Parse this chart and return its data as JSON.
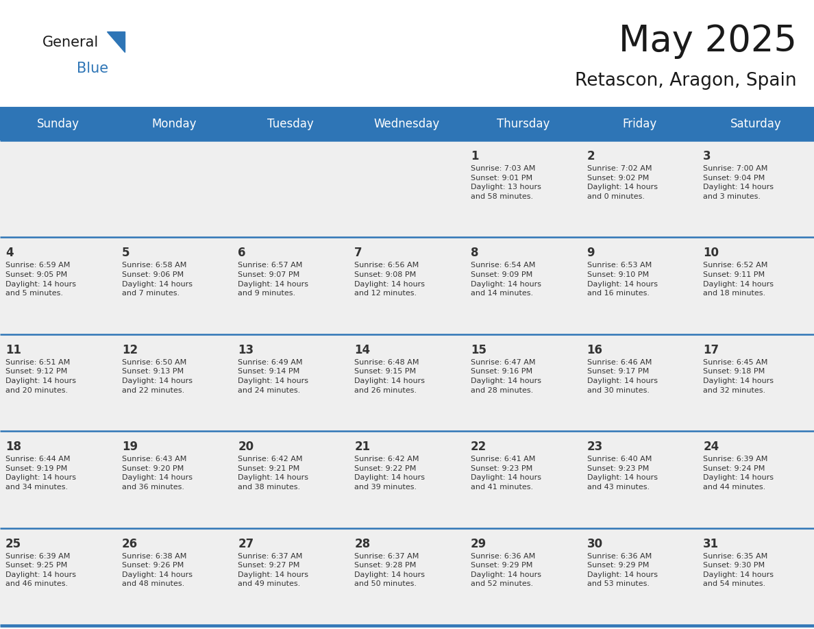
{
  "title": "May 2025",
  "subtitle": "Retascon, Aragon, Spain",
  "header_bg_color": "#2E75B6",
  "header_text_color": "#FFFFFF",
  "cell_bg_color": "#EFEFEF",
  "cell_bg_color_white": "#FFFFFF",
  "text_color": "#333333",
  "border_color": "#2E75B6",
  "days_of_week": [
    "Sunday",
    "Monday",
    "Tuesday",
    "Wednesday",
    "Thursday",
    "Friday",
    "Saturday"
  ],
  "calendar_data": [
    [
      {
        "day": "",
        "info": ""
      },
      {
        "day": "",
        "info": ""
      },
      {
        "day": "",
        "info": ""
      },
      {
        "day": "",
        "info": ""
      },
      {
        "day": "1",
        "info": "Sunrise: 7:03 AM\nSunset: 9:01 PM\nDaylight: 13 hours\nand 58 minutes."
      },
      {
        "day": "2",
        "info": "Sunrise: 7:02 AM\nSunset: 9:02 PM\nDaylight: 14 hours\nand 0 minutes."
      },
      {
        "day": "3",
        "info": "Sunrise: 7:00 AM\nSunset: 9:04 PM\nDaylight: 14 hours\nand 3 minutes."
      }
    ],
    [
      {
        "day": "4",
        "info": "Sunrise: 6:59 AM\nSunset: 9:05 PM\nDaylight: 14 hours\nand 5 minutes."
      },
      {
        "day": "5",
        "info": "Sunrise: 6:58 AM\nSunset: 9:06 PM\nDaylight: 14 hours\nand 7 minutes."
      },
      {
        "day": "6",
        "info": "Sunrise: 6:57 AM\nSunset: 9:07 PM\nDaylight: 14 hours\nand 9 minutes."
      },
      {
        "day": "7",
        "info": "Sunrise: 6:56 AM\nSunset: 9:08 PM\nDaylight: 14 hours\nand 12 minutes."
      },
      {
        "day": "8",
        "info": "Sunrise: 6:54 AM\nSunset: 9:09 PM\nDaylight: 14 hours\nand 14 minutes."
      },
      {
        "day": "9",
        "info": "Sunrise: 6:53 AM\nSunset: 9:10 PM\nDaylight: 14 hours\nand 16 minutes."
      },
      {
        "day": "10",
        "info": "Sunrise: 6:52 AM\nSunset: 9:11 PM\nDaylight: 14 hours\nand 18 minutes."
      }
    ],
    [
      {
        "day": "11",
        "info": "Sunrise: 6:51 AM\nSunset: 9:12 PM\nDaylight: 14 hours\nand 20 minutes."
      },
      {
        "day": "12",
        "info": "Sunrise: 6:50 AM\nSunset: 9:13 PM\nDaylight: 14 hours\nand 22 minutes."
      },
      {
        "day": "13",
        "info": "Sunrise: 6:49 AM\nSunset: 9:14 PM\nDaylight: 14 hours\nand 24 minutes."
      },
      {
        "day": "14",
        "info": "Sunrise: 6:48 AM\nSunset: 9:15 PM\nDaylight: 14 hours\nand 26 minutes."
      },
      {
        "day": "15",
        "info": "Sunrise: 6:47 AM\nSunset: 9:16 PM\nDaylight: 14 hours\nand 28 minutes."
      },
      {
        "day": "16",
        "info": "Sunrise: 6:46 AM\nSunset: 9:17 PM\nDaylight: 14 hours\nand 30 minutes."
      },
      {
        "day": "17",
        "info": "Sunrise: 6:45 AM\nSunset: 9:18 PM\nDaylight: 14 hours\nand 32 minutes."
      }
    ],
    [
      {
        "day": "18",
        "info": "Sunrise: 6:44 AM\nSunset: 9:19 PM\nDaylight: 14 hours\nand 34 minutes."
      },
      {
        "day": "19",
        "info": "Sunrise: 6:43 AM\nSunset: 9:20 PM\nDaylight: 14 hours\nand 36 minutes."
      },
      {
        "day": "20",
        "info": "Sunrise: 6:42 AM\nSunset: 9:21 PM\nDaylight: 14 hours\nand 38 minutes."
      },
      {
        "day": "21",
        "info": "Sunrise: 6:42 AM\nSunset: 9:22 PM\nDaylight: 14 hours\nand 39 minutes."
      },
      {
        "day": "22",
        "info": "Sunrise: 6:41 AM\nSunset: 9:23 PM\nDaylight: 14 hours\nand 41 minutes."
      },
      {
        "day": "23",
        "info": "Sunrise: 6:40 AM\nSunset: 9:23 PM\nDaylight: 14 hours\nand 43 minutes."
      },
      {
        "day": "24",
        "info": "Sunrise: 6:39 AM\nSunset: 9:24 PM\nDaylight: 14 hours\nand 44 minutes."
      }
    ],
    [
      {
        "day": "25",
        "info": "Sunrise: 6:39 AM\nSunset: 9:25 PM\nDaylight: 14 hours\nand 46 minutes."
      },
      {
        "day": "26",
        "info": "Sunrise: 6:38 AM\nSunset: 9:26 PM\nDaylight: 14 hours\nand 48 minutes."
      },
      {
        "day": "27",
        "info": "Sunrise: 6:37 AM\nSunset: 9:27 PM\nDaylight: 14 hours\nand 49 minutes."
      },
      {
        "day": "28",
        "info": "Sunrise: 6:37 AM\nSunset: 9:28 PM\nDaylight: 14 hours\nand 50 minutes."
      },
      {
        "day": "29",
        "info": "Sunrise: 6:36 AM\nSunset: 9:29 PM\nDaylight: 14 hours\nand 52 minutes."
      },
      {
        "day": "30",
        "info": "Sunrise: 6:36 AM\nSunset: 9:29 PM\nDaylight: 14 hours\nand 53 minutes."
      },
      {
        "day": "31",
        "info": "Sunrise: 6:35 AM\nSunset: 9:30 PM\nDaylight: 14 hours\nand 54 minutes."
      }
    ]
  ],
  "logo_text_general": "General",
  "logo_text_blue": "Blue",
  "logo_color_general": "#1a1a1a",
  "logo_color_blue": "#2E75B6",
  "logo_triangle_color": "#2E75B6",
  "figsize": [
    11.88,
    9.18
  ],
  "dpi": 100
}
